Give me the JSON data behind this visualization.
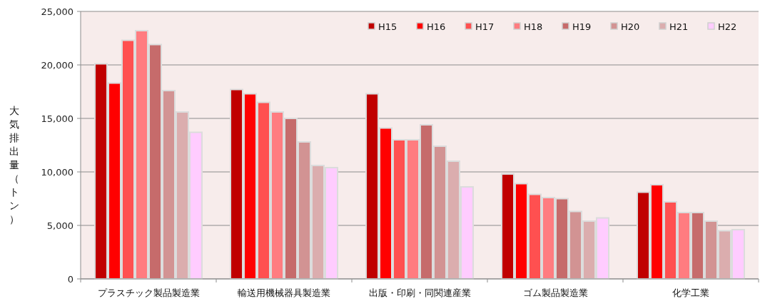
{
  "chart_data": {
    "type": "bar",
    "ylabel": "大気排出量（トン）",
    "categories": [
      "プラスチック製品製造業",
      "輸送用機械器具製造業",
      "出版・印刷・同関連産業",
      "ゴム製品製造業",
      "化学工業"
    ],
    "series": [
      {
        "name": "H15",
        "color": "#c00000",
        "values": [
          20100,
          17700,
          17300,
          9800,
          8100
        ]
      },
      {
        "name": "H16",
        "color": "#ff0000",
        "values": [
          18300,
          17300,
          14100,
          8900,
          8800
        ]
      },
      {
        "name": "H17",
        "color": "#ff5050",
        "values": [
          22300,
          16500,
          13000,
          7900,
          7200
        ]
      },
      {
        "name": "H18",
        "color": "#ff7c80",
        "values": [
          23200,
          15600,
          13000,
          7600,
          6200
        ]
      },
      {
        "name": "H19",
        "color": "#c66b6b",
        "values": [
          21900,
          15000,
          14400,
          7500,
          6200
        ]
      },
      {
        "name": "H20",
        "color": "#d29393",
        "values": [
          17600,
          12800,
          12400,
          6300,
          5400
        ]
      },
      {
        "name": "H21",
        "color": "#dbadae",
        "values": [
          15600,
          10600,
          11000,
          5400,
          4500
        ]
      },
      {
        "name": "H22",
        "color": "#ffccff",
        "values": [
          13700,
          10400,
          8600,
          5700,
          4600
        ]
      }
    ],
    "ylim": [
      0,
      25000
    ],
    "yticks": [
      {
        "value": 0,
        "label": "0"
      },
      {
        "value": 5000,
        "label": "5,000"
      },
      {
        "value": 10000,
        "label": "10,000"
      },
      {
        "value": 15000,
        "label": "15,000"
      },
      {
        "value": 20000,
        "label": "20,000"
      },
      {
        "value": 25000,
        "label": "25,000"
      }
    ],
    "grid": "y",
    "legend": "top right"
  }
}
